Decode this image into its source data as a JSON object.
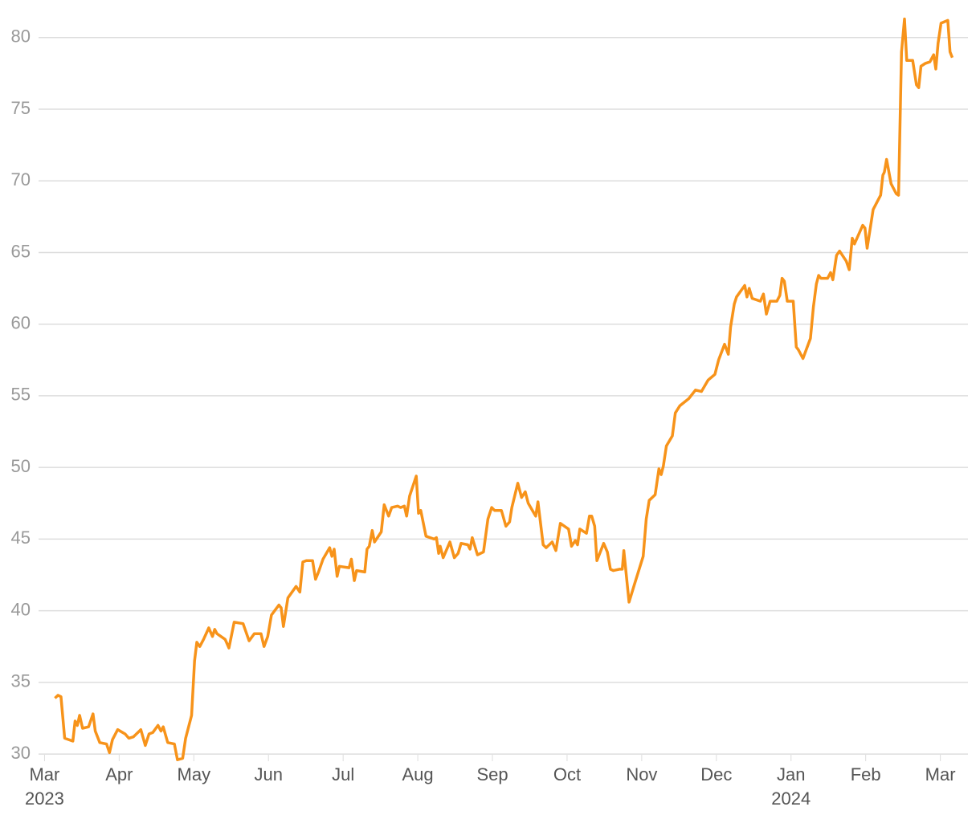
{
  "chart_data": {
    "type": "line",
    "x": [
      0.14,
      0.18,
      0.22,
      0.27,
      0.38,
      0.41,
      0.44,
      0.47,
      0.51,
      0.59,
      0.65,
      0.68,
      0.74,
      0.83,
      0.87,
      0.91,
      0.98,
      1.08,
      1.13,
      1.19,
      1.29,
      1.35,
      1.4,
      1.45,
      1.52,
      1.56,
      1.59,
      1.65,
      1.74,
      1.78,
      1.85,
      1.89,
      1.97,
      2.01,
      2.04,
      2.08,
      2.13,
      2.2,
      2.25,
      2.28,
      2.31,
      2.42,
      2.47,
      2.54,
      2.66,
      2.74,
      2.81,
      2.9,
      2.94,
      2.99,
      3.04,
      3.14,
      3.17,
      3.2,
      3.26,
      3.37,
      3.42,
      3.46,
      3.51,
      3.59,
      3.63,
      3.67,
      3.73,
      3.82,
      3.85,
      3.88,
      3.92,
      3.95,
      4.08,
      4.11,
      4.15,
      4.18,
      4.29,
      4.32,
      4.35,
      4.39,
      4.42,
      4.51,
      4.55,
      4.61,
      4.65,
      4.73,
      4.77,
      4.82,
      4.85,
      4.89,
      4.98,
      5.01,
      5.04,
      5.11,
      5.22,
      5.25,
      5.28,
      5.3,
      5.34,
      5.43,
      5.49,
      5.54,
      5.58,
      5.67,
      5.7,
      5.73,
      5.8,
      5.88,
      5.94,
      5.99,
      6.03,
      6.12,
      6.18,
      6.23,
      6.26,
      6.34,
      6.39,
      6.44,
      6.48,
      6.58,
      6.61,
      6.68,
      6.72,
      6.8,
      6.85,
      6.91,
      7.02,
      7.06,
      7.11,
      7.14,
      7.17,
      7.26,
      7.3,
      7.33,
      7.37,
      7.4,
      7.49,
      7.54,
      7.58,
      7.62,
      7.7,
      7.74,
      7.76,
      7.83,
      7.9,
      8.02,
      8.06,
      8.1,
      8.18,
      8.23,
      8.26,
      8.29,
      8.33,
      8.41,
      8.45,
      8.51,
      8.63,
      8.72,
      8.8,
      8.89,
      8.98,
      9.03,
      9.11,
      9.16,
      9.19,
      9.24,
      9.27,
      9.38,
      9.41,
      9.44,
      9.48,
      9.59,
      9.63,
      9.67,
      9.72,
      9.81,
      9.85,
      9.88,
      9.91,
      9.95,
      10.03,
      10.07,
      10.1,
      10.16,
      10.26,
      10.3,
      10.34,
      10.37,
      10.4,
      10.49,
      10.53,
      10.56,
      10.61,
      10.65,
      10.74,
      10.78,
      10.82,
      10.85,
      10.96,
      10.99,
      11.02,
      11.1,
      11.2,
      11.23,
      11.25,
      11.28,
      11.34,
      11.41,
      11.44,
      11.48,
      11.52,
      11.55,
      11.63,
      11.68,
      11.71,
      11.74,
      11.8,
      11.86,
      11.91,
      11.94,
      11.97,
      12.01,
      12.1,
      12.13,
      12.16
    ],
    "series": [
      {
        "color": "#f7931a",
        "values": [
          33.9,
          34.1,
          34.0,
          31.1,
          30.9,
          32.3,
          32.0,
          32.7,
          31.8,
          31.9,
          32.8,
          31.6,
          30.8,
          30.7,
          30.1,
          31.0,
          31.7,
          31.4,
          31.1,
          31.2,
          31.7,
          30.6,
          31.4,
          31.5,
          32.0,
          31.6,
          31.9,
          30.8,
          30.7,
          29.6,
          29.7,
          31.1,
          32.7,
          36.5,
          37.8,
          37.5,
          38.0,
          38.8,
          38.2,
          38.7,
          38.4,
          38.0,
          37.4,
          39.2,
          39.1,
          37.9,
          38.4,
          38.4,
          37.5,
          38.2,
          39.7,
          40.4,
          40.2,
          38.9,
          40.9,
          41.7,
          41.3,
          43.4,
          43.5,
          43.5,
          42.2,
          42.7,
          43.6,
          44.4,
          43.8,
          44.3,
          42.4,
          43.1,
          43.0,
          43.6,
          42.1,
          42.8,
          42.7,
          44.3,
          44.5,
          45.6,
          44.8,
          45.5,
          47.4,
          46.6,
          47.2,
          47.3,
          47.2,
          47.3,
          46.6,
          48.0,
          49.4,
          46.8,
          47.0,
          45.2,
          45.0,
          45.1,
          44.0,
          44.5,
          43.7,
          44.8,
          43.7,
          44.0,
          44.7,
          44.6,
          44.3,
          45.1,
          43.9,
          44.1,
          46.4,
          47.2,
          47.0,
          47.0,
          45.9,
          46.2,
          47.2,
          48.9,
          47.9,
          48.3,
          47.5,
          46.6,
          47.6,
          44.6,
          44.4,
          44.8,
          44.2,
          46.1,
          45.7,
          44.5,
          44.9,
          44.6,
          45.7,
          45.4,
          46.6,
          46.6,
          45.9,
          43.5,
          44.7,
          44.1,
          42.9,
          42.8,
          42.9,
          42.9,
          44.2,
          40.6,
          41.8,
          43.8,
          46.4,
          47.7,
          48.1,
          49.9,
          49.5,
          50.1,
          51.5,
          52.2,
          53.8,
          54.3,
          54.8,
          55.4,
          55.3,
          56.1,
          56.5,
          57.5,
          58.6,
          57.9,
          59.8,
          61.4,
          61.9,
          62.7,
          61.9,
          62.5,
          61.8,
          61.6,
          62.1,
          60.7,
          61.6,
          61.6,
          62.0,
          63.2,
          63.0,
          61.6,
          61.6,
          58.4,
          58.2,
          57.6,
          59.0,
          61.2,
          62.8,
          63.4,
          63.2,
          63.2,
          63.6,
          63.1,
          64.8,
          65.1,
          64.4,
          63.8,
          66.0,
          65.6,
          66.9,
          66.7,
          65.3,
          68.0,
          69.0,
          70.4,
          70.6,
          71.5,
          69.8,
          69.1,
          69.0,
          79.0,
          81.3,
          78.4,
          78.4,
          76.7,
          76.5,
          78.0,
          78.2,
          78.3,
          78.8,
          77.8,
          79.6,
          81.0,
          81.2,
          79.0,
          78.6
        ]
      }
    ],
    "xlim": [
      -0.08,
      12.37
    ],
    "xticks": [
      {
        "value": 0,
        "label": "Mar"
      },
      {
        "value": 1,
        "label": "Apr"
      },
      {
        "value": 2,
        "label": "May"
      },
      {
        "value": 3,
        "label": "Jun"
      },
      {
        "value": 4,
        "label": "Jul"
      },
      {
        "value": 5,
        "label": "Aug"
      },
      {
        "value": 6,
        "label": "Sep"
      },
      {
        "value": 7,
        "label": "Oct"
      },
      {
        "value": 8,
        "label": "Nov"
      },
      {
        "value": 9,
        "label": "Dec"
      },
      {
        "value": 10,
        "label": "Jan"
      },
      {
        "value": 11,
        "label": "Feb"
      },
      {
        "value": 12,
        "label": "Mar"
      }
    ],
    "year_labels": [
      {
        "value": 0,
        "label": "2023"
      },
      {
        "value": 10,
        "label": "2024"
      }
    ],
    "ylim": [
      29.5,
      81.5
    ],
    "yticks": [
      30,
      35,
      40,
      45,
      50,
      55,
      60,
      65,
      70,
      75,
      80
    ],
    "grid": true
  }
}
